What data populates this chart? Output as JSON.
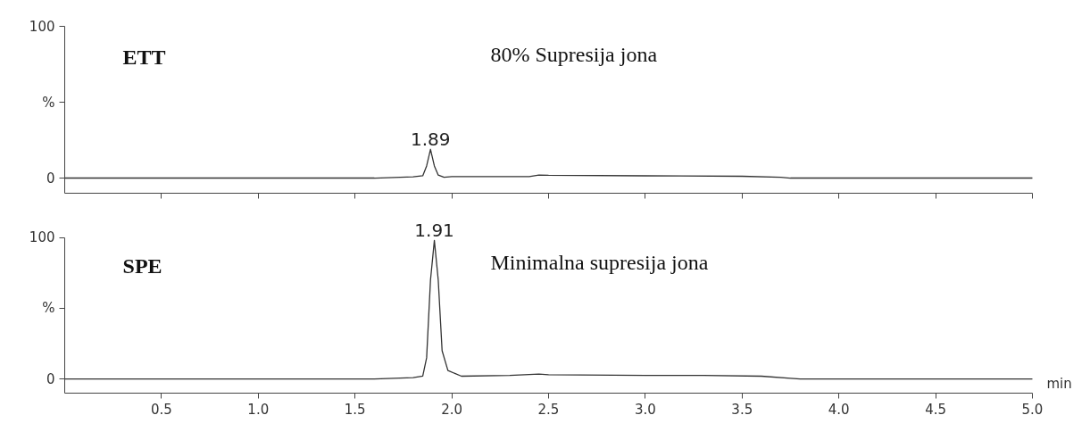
{
  "chart_data": [
    {
      "type": "line",
      "x": [
        0,
        1.6,
        1.8,
        1.85,
        1.87,
        1.89,
        1.91,
        1.93,
        1.96,
        2.0,
        2.4,
        2.45,
        2.5,
        3.0,
        3.5,
        3.7,
        3.75,
        5.0
      ],
      "values": [
        0,
        0,
        0.8,
        1.5,
        8,
        19,
        8,
        2,
        0.5,
        1,
        1,
        2,
        1.8,
        1.5,
        1.2,
        0.5,
        0,
        0
      ],
      "color": "#333333",
      "xlim": [
        0,
        5
      ],
      "ylim": [
        -10,
        100
      ],
      "xticks": [
        {
          "value": 0.5,
          "label": null
        },
        {
          "value": 1,
          "label": null
        },
        {
          "value": 1.5,
          "label": null
        },
        {
          "value": 2,
          "label": null
        },
        {
          "value": 2.5,
          "label": null
        },
        {
          "value": 3,
          "label": null
        },
        {
          "value": 3.5,
          "label": null
        },
        {
          "value": 4,
          "label": null
        },
        {
          "value": 4.5,
          "label": null
        },
        {
          "value": 5,
          "label": null
        }
      ],
      "yticks": [
        0,
        {
          "value": 50,
          "label": "%"
        },
        100
      ],
      "tick_labels": "y",
      "grid": false,
      "marker": "none",
      "annotations": [
        "ETT",
        "80% Supresija jona",
        {
          "text": "1.89",
          "x": 1.89,
          "y": 19
        }
      ]
    },
    {
      "type": "line",
      "x": [
        0,
        1.6,
        1.8,
        1.85,
        1.87,
        1.89,
        1.91,
        1.93,
        1.95,
        1.98,
        2.05,
        2.3,
        2.45,
        2.5,
        3.0,
        3.3,
        3.6,
        3.75,
        3.8,
        5.0
      ],
      "values": [
        0,
        0,
        1,
        2,
        15,
        70,
        98,
        70,
        20,
        6,
        2,
        2.5,
        3.5,
        3,
        2.5,
        2.5,
        2,
        0.5,
        0,
        0
      ],
      "color": "#333333",
      "xlim": [
        0,
        5
      ],
      "ylim": [
        -10,
        100
      ],
      "xticks": [
        {
          "value": 0.5,
          "label": "0.5"
        },
        {
          "value": 1,
          "label": "1.0"
        },
        {
          "value": 1.5,
          "label": "1.5"
        },
        {
          "value": 2,
          "label": "2.0"
        },
        {
          "value": 2.5,
          "label": "2.5"
        },
        {
          "value": 3,
          "label": "3.0"
        },
        {
          "value": 3.5,
          "label": "3.5"
        },
        {
          "value": 4,
          "label": "4.0"
        },
        {
          "value": 4.5,
          "label": "4.5"
        },
        {
          "value": 5,
          "label": "5.0"
        }
      ],
      "yticks": [
        0,
        {
          "value": 50,
          "label": "%"
        },
        100
      ],
      "xlabel": "min",
      "grid": false,
      "marker": "none",
      "annotations": [
        "SPE",
        "Minimalna supresija jona",
        {
          "text": "1.91",
          "x": 1.91,
          "y": 98
        }
      ]
    }
  ]
}
